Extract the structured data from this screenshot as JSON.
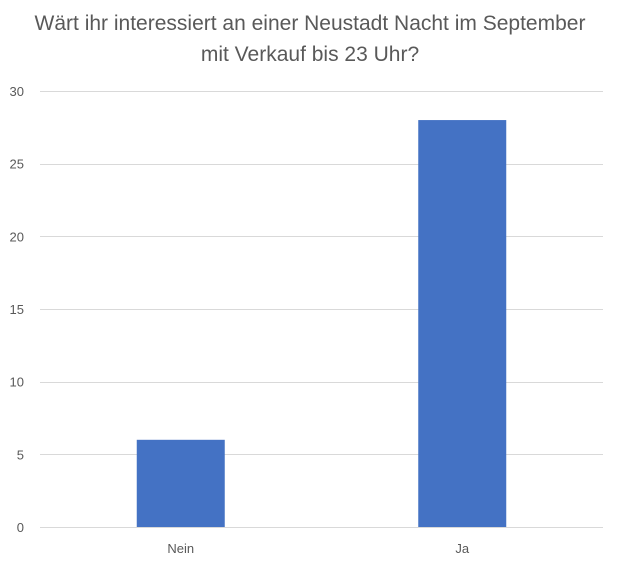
{
  "chart_data": {
    "type": "bar",
    "title": "Wärt ihr interessiert an einer Neustadt Nacht im September mit Verkauf bis 23 Uhr?",
    "categories": [
      "Nein",
      "Ja"
    ],
    "values": [
      6,
      28
    ],
    "ylim": [
      0,
      30
    ],
    "yticks": [
      0,
      5,
      10,
      15,
      20,
      25,
      30
    ],
    "grid": true,
    "legend": "none",
    "bar_color": "#4472C4",
    "grid_color": "#d9d9d9",
    "text_color": "#595959"
  }
}
